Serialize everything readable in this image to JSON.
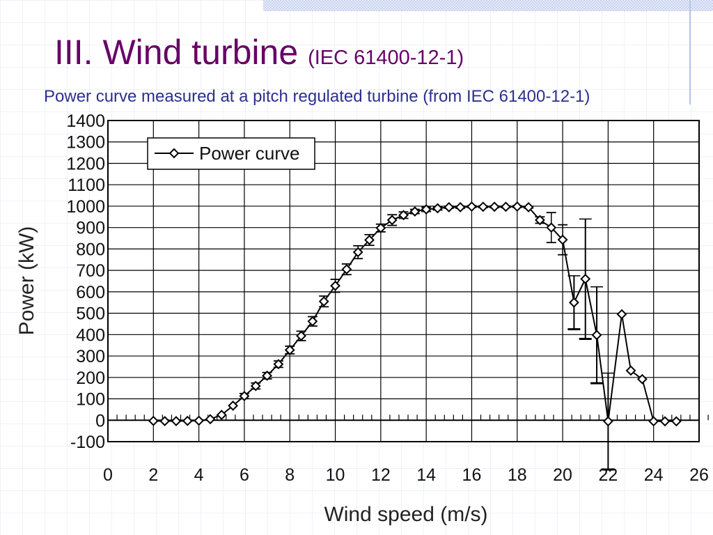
{
  "slide": {
    "title": "III. Wind turbine",
    "title_ref": "(IEC 61400-12-1)",
    "subtitle": "Power curve measured at a pitch regulated turbine (from IEC 61400-12-1)"
  },
  "colors": {
    "title": "#660066",
    "subtitle": "#2b2f8f",
    "series": "#000000",
    "band": "#c9d3f0"
  },
  "chart_data": {
    "type": "line",
    "xlabel": "Wind speed (m/s)",
    "ylabel": "Power (kW)",
    "xlim": [
      0,
      26
    ],
    "ylim": [
      -100,
      1400
    ],
    "xticks": [
      0,
      2,
      4,
      6,
      8,
      10,
      12,
      14,
      16,
      18,
      20,
      22,
      24,
      26
    ],
    "yticks": [
      -100,
      0,
      100,
      200,
      300,
      400,
      500,
      600,
      700,
      800,
      900,
      1000,
      1100,
      1200,
      1300,
      1400
    ],
    "grid": true,
    "legend": {
      "position": "top-left",
      "marker": "diamond"
    },
    "series": [
      {
        "name": "Power curve",
        "marker": "diamond",
        "points": [
          {
            "x": 2.0,
            "y": -3
          },
          {
            "x": 2.5,
            "y": -4
          },
          {
            "x": 3.0,
            "y": -4
          },
          {
            "x": 3.5,
            "y": -3
          },
          {
            "x": 4.0,
            "y": -2
          },
          {
            "x": 4.5,
            "y": 5
          },
          {
            "x": 5.0,
            "y": 25
          },
          {
            "x": 5.5,
            "y": 68
          },
          {
            "x": 6.0,
            "y": 113,
            "err": 12
          },
          {
            "x": 6.5,
            "y": 160,
            "err": 14
          },
          {
            "x": 7.0,
            "y": 208,
            "err": 15
          },
          {
            "x": 7.5,
            "y": 262,
            "err": 15
          },
          {
            "x": 8.0,
            "y": 328,
            "err": 18
          },
          {
            "x": 8.5,
            "y": 394,
            "err": 22
          },
          {
            "x": 9.0,
            "y": 462,
            "err": 22
          },
          {
            "x": 9.5,
            "y": 555,
            "err": 25
          },
          {
            "x": 10.0,
            "y": 628,
            "err": 30
          },
          {
            "x": 10.5,
            "y": 705,
            "err": 25
          },
          {
            "x": 11.0,
            "y": 785,
            "err": 30
          },
          {
            "x": 11.5,
            "y": 842,
            "err": 25
          },
          {
            "x": 12.0,
            "y": 898,
            "err": 18
          },
          {
            "x": 12.5,
            "y": 935,
            "err": 25
          },
          {
            "x": 13.0,
            "y": 958,
            "err": 15
          },
          {
            "x": 13.5,
            "y": 975,
            "err": 10
          },
          {
            "x": 14.0,
            "y": 985,
            "err": 10
          },
          {
            "x": 14.5,
            "y": 990,
            "err": 8
          },
          {
            "x": 15.0,
            "y": 995,
            "err": 5
          },
          {
            "x": 15.5,
            "y": 995,
            "err": 5
          },
          {
            "x": 16.0,
            "y": 998,
            "err": 4
          },
          {
            "x": 16.5,
            "y": 997,
            "err": 4
          },
          {
            "x": 17.0,
            "y": 997,
            "err": 4
          },
          {
            "x": 17.5,
            "y": 997,
            "err": 4
          },
          {
            "x": 18.0,
            "y": 998,
            "err": 4
          },
          {
            "x": 18.5,
            "y": 995,
            "err": 4
          },
          {
            "x": 19.0,
            "y": 935,
            "err": 15
          },
          {
            "x": 19.5,
            "y": 900,
            "err": 70
          },
          {
            "x": 20.0,
            "y": 843,
            "err": 70
          },
          {
            "x": 20.5,
            "y": 550,
            "err": 125
          },
          {
            "x": 21.0,
            "y": 660,
            "err": 280
          },
          {
            "x": 21.5,
            "y": 398,
            "err": 225
          },
          {
            "x": 22.0,
            "y": -5,
            "err": 225
          },
          {
            "x": 22.6,
            "y": 495
          },
          {
            "x": 23.0,
            "y": 232
          },
          {
            "x": 23.5,
            "y": 192
          },
          {
            "x": 24.0,
            "y": -5
          },
          {
            "x": 24.5,
            "y": -5
          },
          {
            "x": 25.0,
            "y": -5
          }
        ]
      }
    ]
  }
}
